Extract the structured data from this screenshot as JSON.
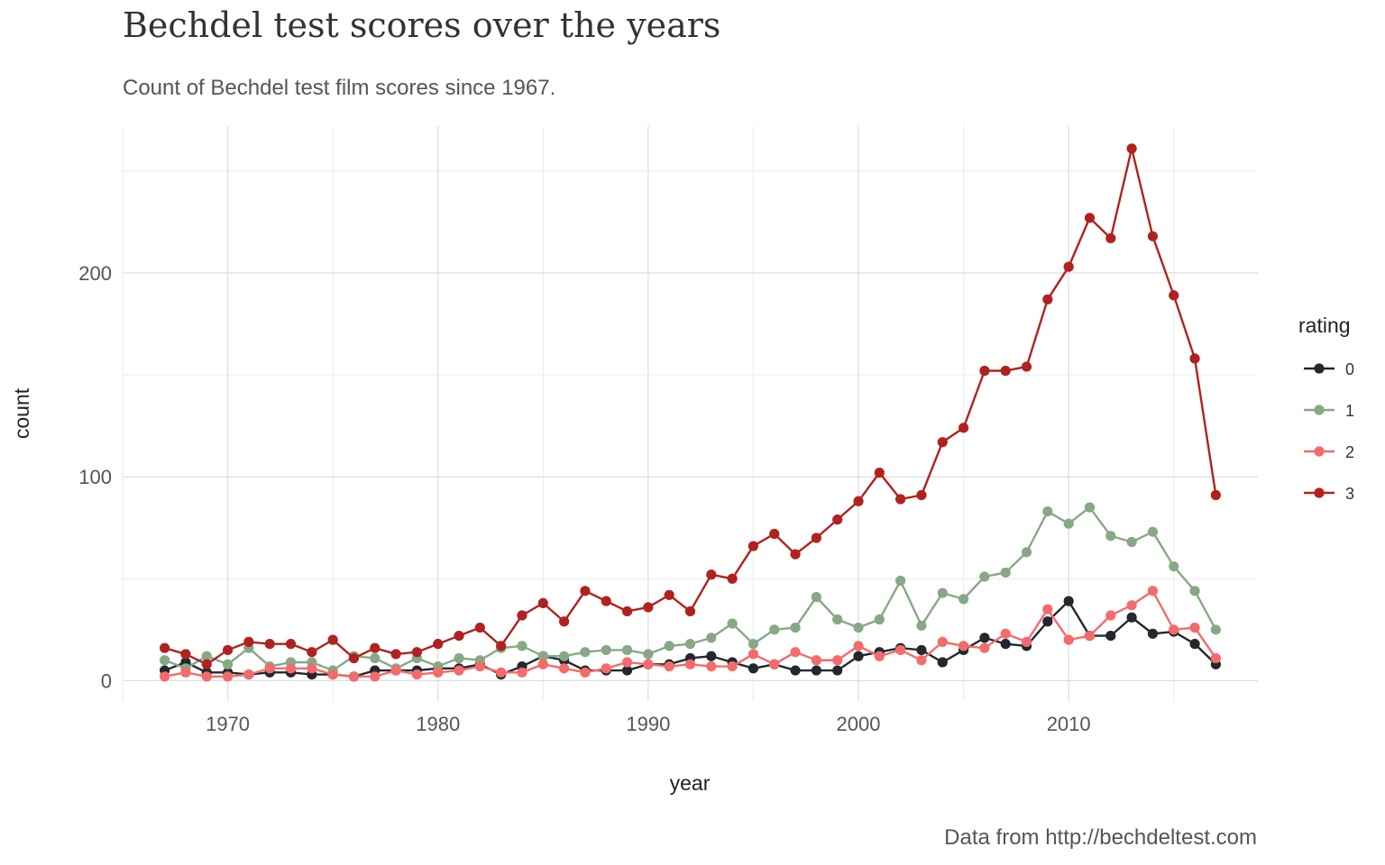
{
  "chart_data": {
    "type": "line",
    "title": "Bechdel test scores over the years",
    "subtitle": "Count of Bechdel test film scores since 1967.",
    "caption": "Data from http://bechdeltest.com",
    "xlabel": "year",
    "ylabel": "count",
    "xlim": [
      1965,
      2019
    ],
    "ylim": [
      -10,
      272
    ],
    "x_ticks": [
      1970,
      1980,
      1990,
      2000,
      2010
    ],
    "y_ticks": [
      0,
      100,
      200
    ],
    "grid": true,
    "legend": {
      "title": "rating",
      "position": "right"
    },
    "x": [
      1967,
      1968,
      1969,
      1970,
      1971,
      1972,
      1973,
      1974,
      1975,
      1976,
      1977,
      1978,
      1979,
      1980,
      1981,
      1982,
      1983,
      1984,
      1985,
      1986,
      1987,
      1988,
      1989,
      1990,
      1991,
      1992,
      1993,
      1994,
      1995,
      1996,
      1997,
      1998,
      1999,
      2000,
      2001,
      2002,
      2003,
      2004,
      2005,
      2006,
      2007,
      2008,
      2009,
      2010,
      2011,
      2012,
      2013,
      2014,
      2015,
      2016,
      2017
    ],
    "series": [
      {
        "name": "0",
        "color": "#22282d",
        "values": [
          5,
          9,
          4,
          4,
          3,
          4,
          4,
          3,
          3,
          2,
          5,
          5,
          5,
          6,
          6,
          8,
          3,
          7,
          12,
          10,
          5,
          5,
          5,
          8,
          8,
          11,
          12,
          9,
          6,
          8,
          5,
          5,
          5,
          12,
          14,
          16,
          15,
          9,
          15,
          21,
          18,
          17,
          29,
          39,
          22,
          22,
          31,
          23,
          24,
          18,
          8
        ]
      },
      {
        "name": "1",
        "color": "#88a885",
        "values": [
          10,
          6,
          12,
          8,
          16,
          7,
          9,
          9,
          5,
          12,
          11,
          6,
          11,
          7,
          11,
          10,
          16,
          17,
          12,
          12,
          14,
          15,
          15,
          13,
          17,
          18,
          21,
          28,
          18,
          25,
          26,
          41,
          30,
          26,
          30,
          49,
          27,
          43,
          40,
          51,
          53,
          63,
          83,
          77,
          85,
          71,
          68,
          73,
          56,
          44,
          25
        ]
      },
      {
        "name": "2",
        "color": "#f46b6b",
        "values": [
          2,
          4,
          2,
          2,
          3,
          6,
          6,
          6,
          3,
          2,
          2,
          5,
          3,
          4,
          5,
          7,
          4,
          4,
          8,
          6,
          4,
          6,
          9,
          8,
          7,
          8,
          7,
          7,
          13,
          8,
          14,
          10,
          10,
          17,
          12,
          15,
          10,
          19,
          17,
          16,
          23,
          19,
          35,
          20,
          22,
          32,
          37,
          44,
          25,
          26,
          11
        ]
      },
      {
        "name": "3",
        "color": "#b0221f",
        "values": [
          16,
          13,
          8,
          15,
          19,
          18,
          18,
          14,
          20,
          11,
          16,
          13,
          14,
          18,
          22,
          26,
          17,
          32,
          38,
          29,
          44,
          39,
          34,
          36,
          42,
          34,
          52,
          50,
          66,
          72,
          62,
          70,
          79,
          88,
          102,
          89,
          91,
          117,
          124,
          152,
          152,
          154,
          187,
          203,
          227,
          217,
          261,
          218,
          189,
          158,
          91
        ]
      }
    ]
  }
}
